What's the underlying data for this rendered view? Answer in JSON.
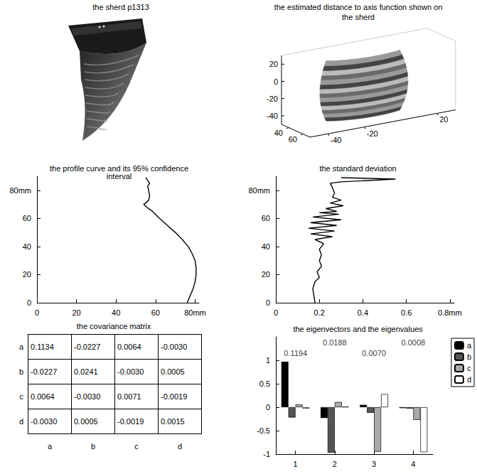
{
  "sherd": {
    "title": "the sherd p1313"
  },
  "chart_data": [
    {
      "type": "surface3d",
      "title": "the estimated distance to axis function shown on the sherd",
      "xlim": [
        30,
        70
      ],
      "xticks": [
        40,
        60
      ],
      "ylim": [
        -50,
        30
      ],
      "yticks": [
        -40,
        -20,
        20
      ],
      "zlim": [
        -50,
        30
      ],
      "zticks": [
        -40,
        -20,
        0,
        20
      ]
    },
    {
      "type": "line",
      "title": "the profile curve and its 95% confidence interval",
      "x": [
        76,
        77.5,
        79,
        80,
        80.5,
        80.5,
        80,
        78.5,
        76.5,
        73.5,
        70,
        66,
        62,
        58.5,
        55.5,
        54,
        55,
        56.5,
        57,
        56.5,
        56,
        57,
        56,
        55
      ],
      "values": [
        0,
        5,
        10,
        15,
        20,
        25,
        30,
        35,
        40,
        45,
        50,
        55,
        60,
        65,
        68,
        70,
        71,
        73,
        76,
        80,
        83,
        85,
        87,
        89
      ],
      "color": "#000000",
      "xlim": [
        0,
        82
      ],
      "xticks": [
        0,
        20,
        40,
        60,
        {
          "value": 80,
          "label": "80mm"
        }
      ],
      "ylim": [
        0,
        90
      ],
      "yticks": [
        0,
        20,
        40,
        60,
        {
          "value": 80,
          "label": "80mm"
        }
      ],
      "grid": false
    },
    {
      "type": "line",
      "title": "the standard deviation",
      "x": [
        0.18,
        0.175,
        0.17,
        0.18,
        0.2,
        0.19,
        0.21,
        0.2,
        0.21,
        0.2,
        0.22,
        0.18,
        0.26,
        0.16,
        0.27,
        0.15,
        0.28,
        0.16,
        0.3,
        0.17,
        0.29,
        0.2,
        0.28,
        0.23,
        0.31,
        0.25,
        0.3,
        0.26,
        0.27,
        0.26,
        0.25,
        0.3,
        0.55,
        0.3
      ],
      "values": [
        0,
        5,
        10,
        15,
        18,
        22,
        26,
        30,
        34,
        38,
        42,
        45,
        47,
        49,
        51,
        53,
        55,
        57,
        59,
        61,
        63,
        64,
        65,
        67,
        69,
        71,
        73,
        75,
        78,
        82,
        85,
        86,
        88,
        89
      ],
      "color": "#000000",
      "xlim": [
        0,
        0.82
      ],
      "xticks": [
        0,
        0.2,
        0.4,
        0.6,
        {
          "value": 0.8,
          "label": "0.8mm"
        }
      ],
      "ylim": [
        0,
        90
      ],
      "yticks": [
        0,
        20,
        40,
        60,
        {
          "value": 80,
          "label": "80mm"
        }
      ],
      "grid": false
    },
    {
      "type": "bar",
      "title": "the eigenvectors and the eigenvalues",
      "categories": [
        "1",
        "2",
        "3",
        "4"
      ],
      "series": [
        {
          "name": "a",
          "color": "#000000",
          "values": [
            0.97,
            -0.23,
            0.05,
            -0.02
          ]
        },
        {
          "name": "b",
          "color": "#555555",
          "values": [
            -0.22,
            -0.97,
            -0.12,
            -0.03
          ]
        },
        {
          "name": "c",
          "color": "#aaaaaa",
          "values": [
            0.06,
            0.11,
            -0.95,
            -0.27
          ]
        },
        {
          "name": "d",
          "color": "#ffffff",
          "values": [
            -0.03,
            0.01,
            0.28,
            -0.96
          ]
        }
      ],
      "annotations": [
        {
          "text": "0.1194",
          "category": "1",
          "y": 1.15
        },
        {
          "text": "0.0188",
          "category": "2",
          "y": 1.38
        },
        {
          "text": "0.0070",
          "category": "3",
          "y": 1.15
        },
        {
          "text": "0.0008",
          "category": "4",
          "y": 1.38
        }
      ],
      "ylim": [
        -1,
        1.5
      ],
      "yticks": [
        -1,
        -0.5,
        0,
        0.5,
        1
      ],
      "legend": "right",
      "grid": false
    }
  ],
  "table": {
    "title": "the covariance matrix",
    "columns": [
      "a",
      "b",
      "c",
      "d"
    ],
    "rows": [
      {
        "label": "a",
        "cells": [
          "0.1134",
          "-0.0227",
          "0.0064",
          "-0.0030"
        ]
      },
      {
        "label": "b",
        "cells": [
          "-0.0227",
          "0.0241",
          "-0.0030",
          "0.0005"
        ]
      },
      {
        "label": "c",
        "cells": [
          "0.0064",
          "-0.0030",
          "0.0071",
          "-0.0019"
        ]
      },
      {
        "label": "d",
        "cells": [
          "-0.0030",
          "0.0005",
          "-0.0019",
          "0.0015"
        ]
      }
    ]
  }
}
